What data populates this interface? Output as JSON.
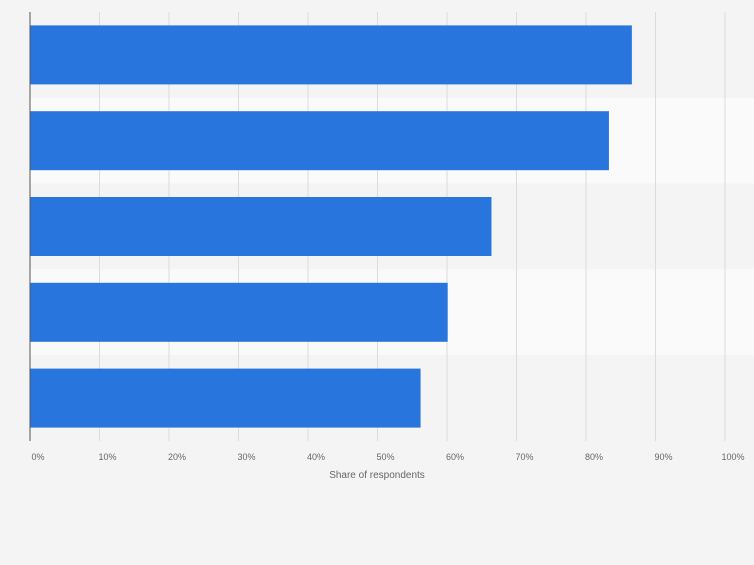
{
  "chart_data": {
    "type": "bar",
    "orientation": "horizontal",
    "categories": [
      "",
      "",
      "",
      "",
      ""
    ],
    "values": [
      86.6,
      83.3,
      66.4,
      60.1,
      56.2
    ],
    "xlabel": "Share of respondents",
    "ylabel": "",
    "xlim": [
      0,
      100
    ],
    "ticks": [
      "0%",
      "10%",
      "20%",
      "30%",
      "40%",
      "50%",
      "60%",
      "70%",
      "80%",
      "90%",
      "100%"
    ],
    "bar_color": "#2876dd",
    "gridlines": true,
    "legend": "none"
  }
}
